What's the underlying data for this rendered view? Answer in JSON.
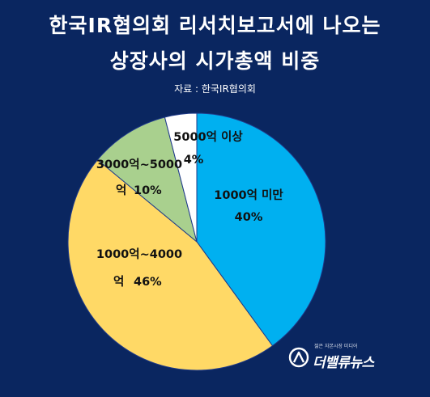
{
  "header": {
    "title_line1": "한국IR협의회 리서치보고서에 나오는",
    "title_line2": "상장사의 시가총액 비중",
    "source": "자료 : 한국IR협의회"
  },
  "logo": {
    "tagline": "젊은 자본시장 미디어",
    "name": "더밸류뉴스"
  },
  "colors": {
    "background": "#0a2660",
    "slice_under_1000": "#00b0f0",
    "slice_1000_4000": "#ffd966",
    "slice_3000_5000": "#a9d08e",
    "slice_over_5000": "#ffffff",
    "slice_border": "#1f3a8a"
  },
  "chart_data": {
    "type": "pie",
    "title": "한국IR협의회 리서치보고서에 나오는 상장사의 시가총액 비중",
    "slices": [
      {
        "label_line1": "1000억 미만",
        "label_line2": "",
        "value": 40,
        "value_label": "40%"
      },
      {
        "label_line1": "1000억~4000",
        "label_line2": "억",
        "value": 46,
        "value_label": "46%"
      },
      {
        "label_line1": "3000억~5000",
        "label_line2": "억",
        "value": 10,
        "value_label": "10%"
      },
      {
        "label_line1": "5000억 이상",
        "label_line2": "",
        "value": 4,
        "value_label": "4%"
      }
    ],
    "start_angle_deg": 0,
    "direction": "clockwise",
    "legend": "none"
  }
}
